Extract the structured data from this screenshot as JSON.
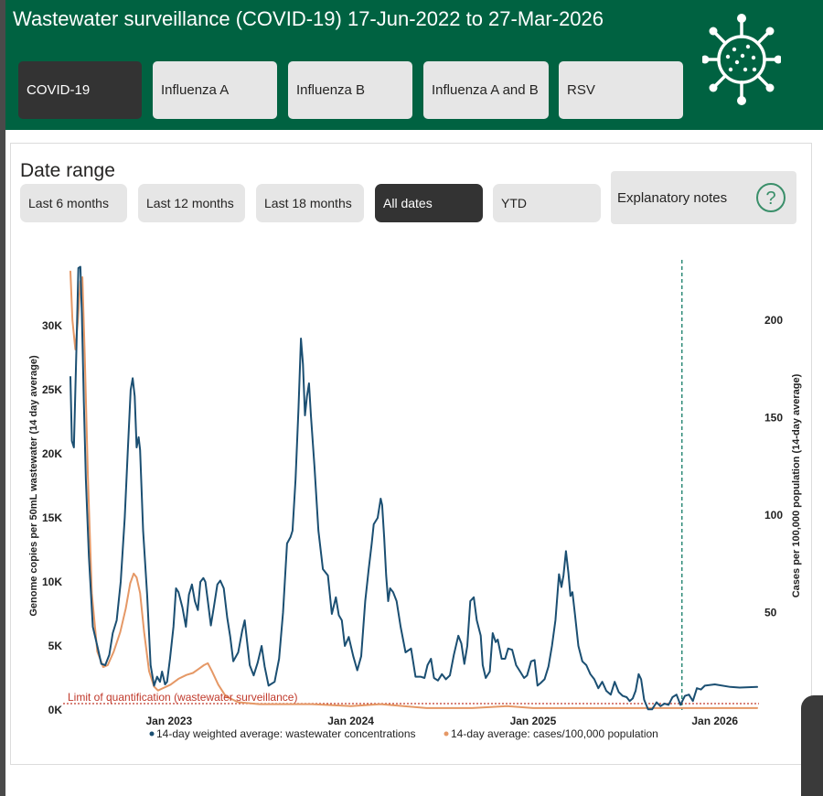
{
  "header": {
    "title": "Wastewater surveillance (COVID-19) 17-Jun-2022 to 27-Mar-2026",
    "tabs": [
      {
        "label": "COVID-19",
        "active": true
      },
      {
        "label": "Influenza A",
        "active": false
      },
      {
        "label": "Influenza B",
        "active": false
      },
      {
        "label": "Influenza A and B",
        "active": false
      },
      {
        "label": "RSV",
        "active": false
      }
    ],
    "icon": "virus-icon"
  },
  "date_range": {
    "title": "Date range",
    "buttons": [
      {
        "label": "Last 6 months",
        "active": false
      },
      {
        "label": "Last 12 months",
        "active": false
      },
      {
        "label": "Last 18 months",
        "active": false
      },
      {
        "label": "All dates",
        "active": true
      },
      {
        "label": "YTD",
        "active": false
      }
    ],
    "notes_label": "Explanatory notes",
    "notes_icon": "question-mark-icon"
  },
  "colors": {
    "header_bg": "#006241",
    "wastewater": "#1b4f72",
    "cases": "#e59866",
    "loq": "#c0392b",
    "marker": "#117a65"
  },
  "chart_data": {
    "type": "line",
    "title": "",
    "x_range": [
      "2022-06-17",
      "2026-03-27"
    ],
    "x_ticks": [
      {
        "date": "2023-01-01",
        "label": "Jan 2023"
      },
      {
        "date": "2024-01-01",
        "label": "Jan 2024"
      },
      {
        "date": "2025-01-01",
        "label": "Jan 2025"
      },
      {
        "date": "2026-01-01",
        "label": "Jan 2026"
      }
    ],
    "y_left": {
      "label": "Genome copies per 50mL wastewater (14 day average)",
      "range": [
        0,
        35000
      ],
      "ticks": [
        0,
        5000,
        10000,
        15000,
        20000,
        25000,
        30000
      ],
      "tick_labels": [
        "0K",
        "5K",
        "10K",
        "15K",
        "20K",
        "25K",
        "30K"
      ]
    },
    "y_right": {
      "label": "Cases per 100,000 population (14-day average)",
      "range": [
        0,
        230
      ],
      "ticks": [
        50,
        100,
        150,
        200
      ],
      "tick_labels": [
        "50",
        "100",
        "150",
        "200"
      ]
    },
    "limit_of_quantification": {
      "value": 500,
      "label": "Limit of quantification (wastewater surveillance)"
    },
    "reporting_change_date": "2025-10-27",
    "series": [
      {
        "name": "14-day weighted average: wastewater concentrations",
        "axis": "left",
        "points": [
          [
            "2022-06-17",
            26000
          ],
          [
            "2022-06-20",
            21000
          ],
          [
            "2022-06-24",
            20500
          ],
          [
            "2022-06-29",
            28000
          ],
          [
            "2022-07-03",
            34500
          ],
          [
            "2022-07-07",
            34600
          ],
          [
            "2022-07-10",
            31000
          ],
          [
            "2022-07-14",
            24000
          ],
          [
            "2022-07-18",
            18000
          ],
          [
            "2022-07-24",
            12000
          ],
          [
            "2022-08-01",
            6500
          ],
          [
            "2022-08-10",
            5000
          ],
          [
            "2022-08-18",
            3600
          ],
          [
            "2022-08-26",
            3500
          ],
          [
            "2022-09-03",
            4300
          ],
          [
            "2022-09-10",
            6000
          ],
          [
            "2022-09-18",
            7000
          ],
          [
            "2022-09-26",
            10000
          ],
          [
            "2022-10-04",
            15000
          ],
          [
            "2022-10-10",
            20000
          ],
          [
            "2022-10-16",
            25000
          ],
          [
            "2022-10-20",
            25900
          ],
          [
            "2022-10-24",
            24500
          ],
          [
            "2022-10-28",
            20500
          ],
          [
            "2022-11-01",
            21300
          ],
          [
            "2022-11-04",
            20300
          ],
          [
            "2022-11-10",
            14000
          ],
          [
            "2022-11-18",
            9000
          ],
          [
            "2022-11-25",
            3500
          ],
          [
            "2022-12-02",
            1900
          ],
          [
            "2022-12-08",
            2600
          ],
          [
            "2022-12-14",
            2200
          ],
          [
            "2022-12-18",
            3000
          ],
          [
            "2022-12-24",
            2000
          ],
          [
            "2022-12-28",
            2200
          ],
          [
            "2023-01-03",
            4000
          ],
          [
            "2023-01-10",
            6500
          ],
          [
            "2023-01-15",
            9500
          ],
          [
            "2023-01-20",
            9200
          ],
          [
            "2023-01-28",
            8000
          ],
          [
            "2023-02-04",
            6500
          ],
          [
            "2023-02-10",
            9000
          ],
          [
            "2023-02-16",
            9800
          ],
          [
            "2023-02-22",
            8500
          ],
          [
            "2023-02-28",
            7800
          ],
          [
            "2023-03-05",
            10000
          ],
          [
            "2023-03-11",
            10300
          ],
          [
            "2023-03-15",
            10000
          ],
          [
            "2023-03-20",
            8500
          ],
          [
            "2023-03-26",
            6600
          ],
          [
            "2023-04-01",
            8000
          ],
          [
            "2023-04-08",
            9800
          ],
          [
            "2023-04-14",
            10100
          ],
          [
            "2023-04-21",
            9500
          ],
          [
            "2023-04-28",
            7200
          ],
          [
            "2023-05-04",
            5700
          ],
          [
            "2023-05-10",
            3800
          ],
          [
            "2023-05-20",
            4500
          ],
          [
            "2023-05-28",
            6200
          ],
          [
            "2023-06-02",
            7000
          ],
          [
            "2023-06-06",
            5600
          ],
          [
            "2023-06-12",
            3500
          ],
          [
            "2023-06-20",
            2700
          ],
          [
            "2023-06-28",
            3700
          ],
          [
            "2023-07-06",
            5000
          ],
          [
            "2023-07-12",
            3400
          ],
          [
            "2023-07-20",
            1900
          ],
          [
            "2023-08-01",
            2200
          ],
          [
            "2023-08-10",
            4000
          ],
          [
            "2023-08-18",
            7600
          ],
          [
            "2023-08-26",
            13000
          ],
          [
            "2023-09-02",
            13500
          ],
          [
            "2023-09-06",
            14000
          ],
          [
            "2023-09-12",
            18000
          ],
          [
            "2023-09-18",
            23500
          ],
          [
            "2023-09-23",
            29000
          ],
          [
            "2023-09-27",
            27000
          ],
          [
            "2023-10-01",
            23000
          ],
          [
            "2023-10-05",
            24500
          ],
          [
            "2023-10-09",
            25500
          ],
          [
            "2023-10-13",
            23000
          ],
          [
            "2023-10-20",
            19000
          ],
          [
            "2023-10-28",
            14000
          ],
          [
            "2023-11-06",
            11000
          ],
          [
            "2023-11-16",
            10500
          ],
          [
            "2023-11-24",
            7500
          ],
          [
            "2023-12-02",
            8800
          ],
          [
            "2023-12-08",
            7400
          ],
          [
            "2023-12-14",
            7000
          ],
          [
            "2023-12-20",
            5000
          ],
          [
            "2023-12-28",
            5700
          ],
          [
            "2024-01-06",
            4200
          ],
          [
            "2024-01-14",
            3100
          ],
          [
            "2024-01-22",
            4200
          ],
          [
            "2024-01-30",
            8500
          ],
          [
            "2024-02-06",
            11000
          ],
          [
            "2024-02-12",
            13000
          ],
          [
            "2024-02-16",
            14500
          ],
          [
            "2024-02-24",
            15000
          ],
          [
            "2024-03-01",
            16500
          ],
          [
            "2024-03-04",
            16000
          ],
          [
            "2024-03-08",
            13500
          ],
          [
            "2024-03-12",
            10500
          ],
          [
            "2024-03-16",
            8500
          ],
          [
            "2024-03-20",
            9500
          ],
          [
            "2024-03-26",
            9200
          ],
          [
            "2024-04-02",
            8500
          ],
          [
            "2024-04-10",
            6500
          ],
          [
            "2024-04-20",
            4500
          ],
          [
            "2024-05-01",
            4800
          ],
          [
            "2024-05-10",
            2600
          ],
          [
            "2024-05-20",
            2600
          ],
          [
            "2024-05-28",
            2500
          ],
          [
            "2024-06-03",
            3500
          ],
          [
            "2024-06-10",
            4000
          ],
          [
            "2024-06-16",
            2500
          ],
          [
            "2024-06-24",
            2300
          ],
          [
            "2024-07-02",
            2800
          ],
          [
            "2024-07-10",
            2400
          ],
          [
            "2024-07-18",
            2700
          ],
          [
            "2024-07-26",
            4300
          ],
          [
            "2024-08-04",
            5800
          ],
          [
            "2024-08-10",
            5200
          ],
          [
            "2024-08-16",
            3600
          ],
          [
            "2024-08-22",
            5000
          ],
          [
            "2024-08-28",
            8500
          ],
          [
            "2024-09-04",
            8800
          ],
          [
            "2024-09-10",
            7000
          ],
          [
            "2024-09-18",
            5800
          ],
          [
            "2024-09-22",
            3500
          ],
          [
            "2024-09-28",
            2500
          ],
          [
            "2024-10-06",
            3000
          ],
          [
            "2024-10-12",
            6000
          ],
          [
            "2024-10-18",
            5300
          ],
          [
            "2024-10-22",
            5500
          ],
          [
            "2024-10-30",
            4000
          ],
          [
            "2024-11-06",
            4000
          ],
          [
            "2024-11-12",
            4800
          ],
          [
            "2024-11-20",
            4700
          ],
          [
            "2024-11-28",
            3500
          ],
          [
            "2024-12-06",
            3000
          ],
          [
            "2024-12-14",
            2500
          ],
          [
            "2024-12-20",
            2700
          ],
          [
            "2024-12-28",
            3800
          ],
          [
            "2025-01-04",
            3900
          ],
          [
            "2025-01-10",
            1900
          ],
          [
            "2025-01-16",
            2100
          ],
          [
            "2025-01-24",
            2400
          ],
          [
            "2025-02-01",
            3400
          ],
          [
            "2025-02-08",
            5000
          ],
          [
            "2025-02-15",
            7000
          ],
          [
            "2025-02-22",
            10600
          ],
          [
            "2025-02-27",
            9600
          ],
          [
            "2025-03-03",
            10500
          ],
          [
            "2025-03-08",
            12400
          ],
          [
            "2025-03-13",
            10700
          ],
          [
            "2025-03-17",
            8900
          ],
          [
            "2025-03-21",
            9200
          ],
          [
            "2025-03-26",
            7500
          ],
          [
            "2025-04-02",
            5000
          ],
          [
            "2025-04-10",
            3800
          ],
          [
            "2025-04-18",
            3500
          ],
          [
            "2025-04-26",
            2800
          ],
          [
            "2025-05-04",
            2400
          ],
          [
            "2025-05-12",
            1700
          ],
          [
            "2025-05-20",
            2200
          ],
          [
            "2025-05-28",
            1500
          ],
          [
            "2025-06-06",
            1200
          ],
          [
            "2025-06-14",
            2200
          ],
          [
            "2025-06-22",
            1400
          ],
          [
            "2025-06-30",
            1100
          ],
          [
            "2025-07-08",
            1000
          ],
          [
            "2025-07-14",
            700
          ],
          [
            "2025-07-20",
            900
          ],
          [
            "2025-07-26",
            1500
          ],
          [
            "2025-08-01",
            2800
          ],
          [
            "2025-08-06",
            2400
          ],
          [
            "2025-08-12",
            800
          ],
          [
            "2025-08-20",
            50
          ],
          [
            "2025-08-28",
            50
          ],
          [
            "2025-09-06",
            600
          ],
          [
            "2025-09-14",
            300
          ],
          [
            "2025-09-22",
            500
          ],
          [
            "2025-09-30",
            400
          ],
          [
            "2025-10-08",
            1000
          ],
          [
            "2025-10-16",
            1200
          ],
          [
            "2025-10-24",
            400
          ],
          [
            "2025-11-02",
            1100
          ],
          [
            "2025-11-10",
            1200
          ],
          [
            "2025-11-18",
            700
          ],
          [
            "2025-11-26",
            1700
          ],
          [
            "2025-12-04",
            1600
          ],
          [
            "2025-12-12",
            1900
          ],
          [
            "2026-01-01",
            2000
          ],
          [
            "2026-02-01",
            1800
          ],
          [
            "2026-02-20",
            1750
          ],
          [
            "2026-03-27",
            1800
          ]
        ]
      },
      {
        "name": "14-day average: cases/100,000 population",
        "axis": "right",
        "points": [
          [
            "2022-06-17",
            225
          ],
          [
            "2022-06-21",
            200
          ],
          [
            "2022-06-27",
            185
          ],
          [
            "2022-07-02",
            200
          ],
          [
            "2022-07-07",
            220
          ],
          [
            "2022-07-11",
            222
          ],
          [
            "2022-07-16",
            180
          ],
          [
            "2022-07-22",
            120
          ],
          [
            "2022-07-30",
            60
          ],
          [
            "2022-08-10",
            30
          ],
          [
            "2022-08-22",
            22
          ],
          [
            "2022-08-31",
            23
          ],
          [
            "2022-09-12",
            30
          ],
          [
            "2022-09-25",
            40
          ],
          [
            "2022-10-06",
            52
          ],
          [
            "2022-10-15",
            65
          ],
          [
            "2022-10-22",
            70
          ],
          [
            "2022-10-28",
            68
          ],
          [
            "2022-11-04",
            60
          ],
          [
            "2022-11-12",
            40
          ],
          [
            "2022-11-22",
            20
          ],
          [
            "2022-12-02",
            12
          ],
          [
            "2022-12-10",
            10
          ],
          [
            "2022-12-18",
            11
          ],
          [
            "2023-01-04",
            13
          ],
          [
            "2023-01-20",
            16
          ],
          [
            "2023-02-05",
            18
          ],
          [
            "2023-02-18",
            19
          ],
          [
            "2023-03-01",
            21
          ],
          [
            "2023-03-12",
            23
          ],
          [
            "2023-03-20",
            24
          ],
          [
            "2023-03-28",
            20
          ],
          [
            "2023-04-10",
            13
          ],
          [
            "2023-04-25",
            7
          ],
          [
            "2023-05-20",
            4
          ],
          [
            "2023-07-01",
            3
          ],
          [
            "2023-09-01",
            3
          ],
          [
            "2023-10-15",
            3
          ],
          [
            "2024-01-01",
            2
          ],
          [
            "2024-03-01",
            3
          ],
          [
            "2024-06-01",
            1
          ],
          [
            "2024-09-01",
            1
          ],
          [
            "2024-11-10",
            2
          ],
          [
            "2025-01-01",
            1
          ],
          [
            "2025-04-01",
            1
          ],
          [
            "2025-07-01",
            1
          ],
          [
            "2025-10-01",
            1
          ],
          [
            "2025-12-01",
            1
          ],
          [
            "2026-03-27",
            1
          ]
        ]
      }
    ],
    "legend": "bottom-center"
  }
}
